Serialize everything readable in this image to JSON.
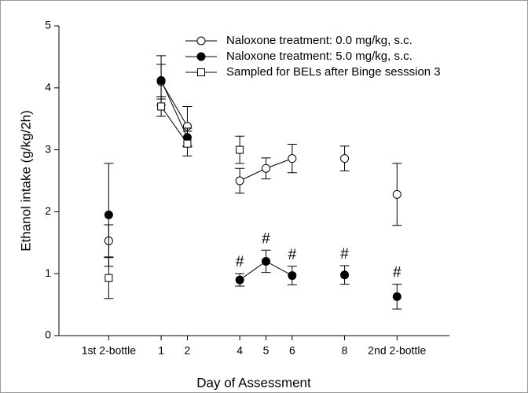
{
  "chart_data": {
    "type": "line",
    "xlabel": "Day of Assessment",
    "ylabel": "Ethanol intake (g/kg/2h)",
    "x": [
      -1,
      null,
      1,
      2,
      null,
      4,
      5,
      6,
      null,
      8,
      null,
      10
    ],
    "xlim": [
      -2.9,
      12
    ],
    "xticks": [
      {
        "value": -1,
        "label": "1st 2-bottle"
      },
      1,
      2,
      4,
      5,
      6,
      8,
      {
        "value": 10,
        "label": "2nd 2-bottle"
      }
    ],
    "ylim": [
      0,
      5
    ],
    "yticks": [
      0,
      1,
      2,
      3,
      4,
      5
    ],
    "legend": "upper right",
    "series": [
      {
        "name": "Naloxone treatment: 0.0 mg/kg, s.c.",
        "color": "#000000",
        "marker": "open-circle",
        "values": [
          1.53,
          null,
          4.1,
          3.38,
          null,
          2.5,
          2.7,
          2.86,
          null,
          2.86,
          null,
          2.28
        ],
        "errors": [
          0.26,
          null,
          0.28,
          0.32,
          null,
          0.2,
          0.17,
          0.23,
          null,
          0.2,
          null,
          0.5
        ]
      },
      {
        "name": "Naloxone treatment: 5.0 mg/kg, s.c.",
        "color": "#000000",
        "marker": "filled-circle",
        "values": [
          1.95,
          null,
          4.12,
          3.2,
          null,
          0.9,
          1.2,
          0.97,
          null,
          0.98,
          null,
          0.63
        ],
        "errors": [
          0.83,
          null,
          0.4,
          0.15,
          null,
          0.1,
          0.18,
          0.15,
          null,
          0.15,
          null,
          0.2
        ]
      },
      {
        "name": "Sampled for BELs after Binge sesssion 3",
        "color": "#000000",
        "marker": "open-square",
        "values": [
          0.93,
          null,
          3.7,
          3.1,
          null,
          3.0,
          null,
          null,
          null,
          null,
          null,
          null
        ],
        "errors": [
          0.33,
          null,
          0.16,
          0.2,
          null,
          0.22,
          null,
          null,
          null,
          null,
          null,
          null
        ]
      }
    ],
    "annotations": [
      {
        "text": "#",
        "x": 4
      },
      {
        "text": "#",
        "x": 5
      },
      {
        "text": "#",
        "x": 6
      },
      {
        "text": "#",
        "x": 8
      },
      {
        "text": "#",
        "x": 10
      }
    ]
  }
}
